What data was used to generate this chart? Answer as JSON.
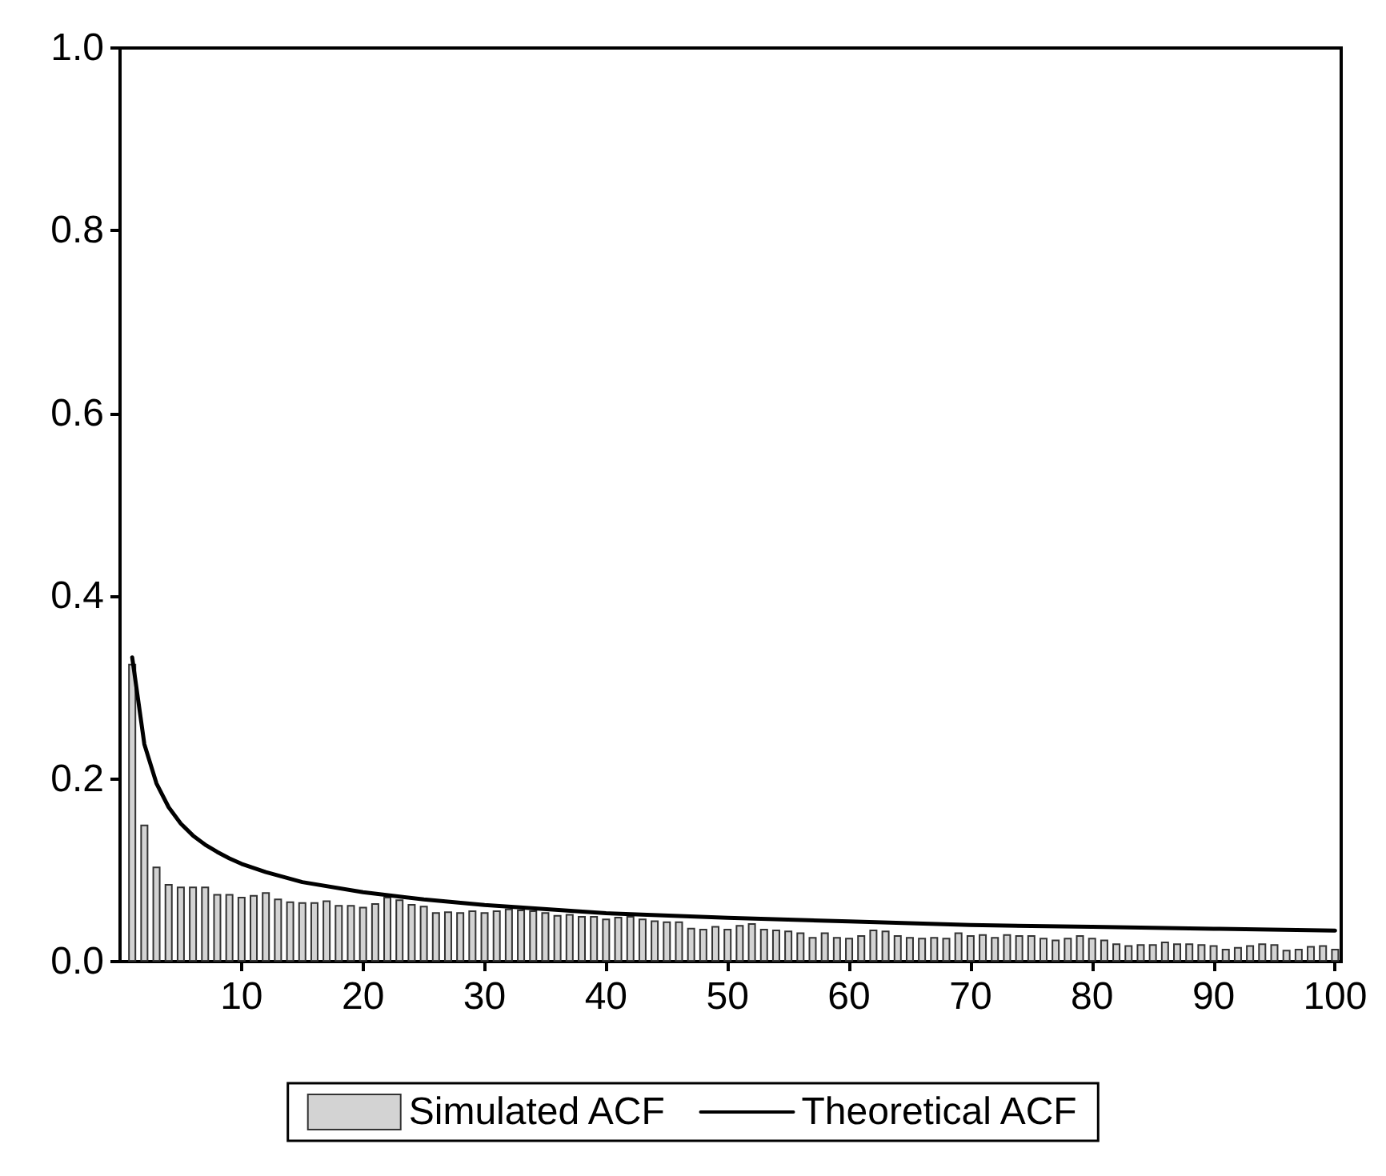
{
  "chart_data": {
    "type": "bar",
    "xlim": [
      0,
      100.5
    ],
    "xticks": [
      10,
      20,
      30,
      40,
      50,
      60,
      70,
      80,
      90,
      100
    ],
    "ylim": [
      0,
      1
    ],
    "yticks": [
      {
        "value": 0,
        "label": "0.0"
      },
      0.2,
      0.4,
      0.6,
      0.8,
      {
        "value": 1,
        "label": "1.0"
      }
    ],
    "legend": "bottom",
    "series": [
      {
        "name": "Simulated ACF",
        "color": "#d3d3d3",
        "x": [
          1,
          2,
          3,
          4,
          5,
          6,
          7,
          8,
          9,
          10,
          11,
          12,
          13,
          14,
          15,
          16,
          17,
          18,
          19,
          20,
          21,
          22,
          23,
          24,
          25,
          26,
          27,
          28,
          29,
          30,
          31,
          32,
          33,
          34,
          35,
          36,
          37,
          38,
          39,
          40,
          41,
          42,
          43,
          44,
          45,
          46,
          47,
          48,
          49,
          50,
          51,
          52,
          53,
          54,
          55,
          56,
          57,
          58,
          59,
          60,
          61,
          62,
          63,
          64,
          65,
          66,
          67,
          68,
          69,
          70,
          71,
          72,
          73,
          74,
          75,
          76,
          77,
          78,
          79,
          80,
          81,
          82,
          83,
          84,
          85,
          86,
          87,
          88,
          89,
          90,
          91,
          92,
          93,
          94,
          95,
          96,
          97,
          98,
          99,
          100
        ],
        "values": [
          0.326,
          0.15,
          0.104,
          0.085,
          0.082,
          0.082,
          0.082,
          0.074,
          0.074,
          0.071,
          0.073,
          0.076,
          0.069,
          0.066,
          0.065,
          0.065,
          0.067,
          0.062,
          0.062,
          0.06,
          0.064,
          0.071,
          0.068,
          0.063,
          0.061,
          0.054,
          0.055,
          0.054,
          0.056,
          0.054,
          0.056,
          0.058,
          0.057,
          0.056,
          0.054,
          0.051,
          0.052,
          0.05,
          0.05,
          0.047,
          0.049,
          0.05,
          0.047,
          0.045,
          0.044,
          0.044,
          0.037,
          0.036,
          0.039,
          0.036,
          0.04,
          0.042,
          0.036,
          0.035,
          0.034,
          0.032,
          0.027,
          0.032,
          0.027,
          0.026,
          0.029,
          0.035,
          0.034,
          0.029,
          0.027,
          0.026,
          0.027,
          0.026,
          0.032,
          0.029,
          0.03,
          0.027,
          0.03,
          0.029,
          0.029,
          0.026,
          0.024,
          0.026,
          0.029,
          0.026,
          0.024,
          0.02,
          0.018,
          0.019,
          0.019,
          0.022,
          0.02,
          0.02,
          0.019,
          0.018,
          0.014,
          0.016,
          0.018,
          0.02,
          0.019,
          0.013,
          0.014,
          0.017,
          0.018,
          0.014
        ]
      },
      {
        "name": "Theoretical ACF",
        "type": "line",
        "color": "#000000",
        "x": [
          1,
          2,
          3,
          4,
          5,
          6,
          7,
          8,
          9,
          10,
          12,
          15,
          20,
          25,
          30,
          40,
          50,
          60,
          70,
          80,
          90,
          100
        ],
        "values": [
          0.333,
          0.238,
          0.195,
          0.169,
          0.151,
          0.138,
          0.128,
          0.12,
          0.113,
          0.107,
          0.098,
          0.087,
          0.076,
          0.068,
          0.062,
          0.053,
          0.048,
          0.044,
          0.04,
          0.038,
          0.036,
          0.034
        ]
      }
    ]
  }
}
